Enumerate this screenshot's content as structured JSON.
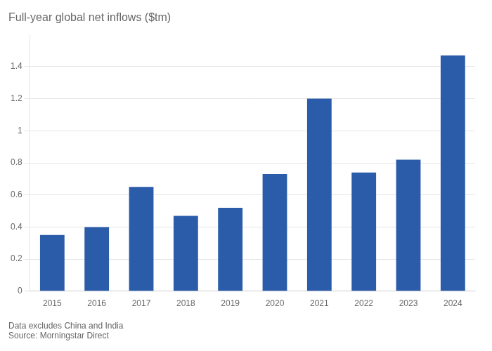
{
  "chart_data": {
    "type": "bar",
    "title": "Full-year global net inflows ($tm)",
    "categories": [
      "2015",
      "2016",
      "2017",
      "2018",
      "2019",
      "2020",
      "2021",
      "2022",
      "2023",
      "2024"
    ],
    "values": [
      0.35,
      0.4,
      0.65,
      0.47,
      0.52,
      0.73,
      1.2,
      0.74,
      0.82,
      1.47
    ],
    "color": "#2a5caa",
    "ylim": [
      0,
      1.6
    ],
    "yticks": [
      0,
      0.2,
      0.4,
      0.6,
      0.8,
      1.0,
      1.2,
      1.4
    ],
    "grid": true,
    "annotations": [
      "Data excludes China and India",
      "Source: Morningstar Direct"
    ]
  }
}
